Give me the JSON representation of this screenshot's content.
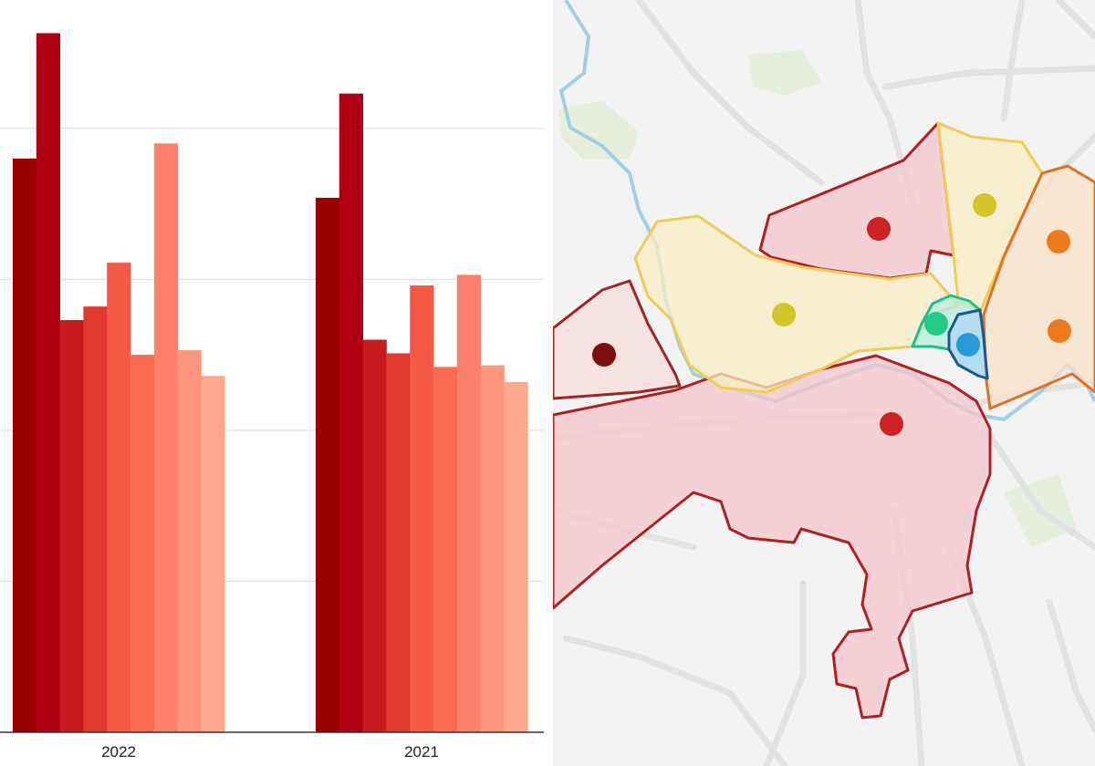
{
  "chart_data": {
    "type": "bar",
    "categories": [
      "2022",
      "2021"
    ],
    "series": [
      {
        "values": [
          380,
          354
        ]
      },
      {
        "values": [
          463,
          423
        ]
      },
      {
        "values": [
          273,
          260
        ]
      },
      {
        "values": [
          282,
          251
        ]
      },
      {
        "values": [
          311,
          296
        ]
      },
      {
        "values": [
          250,
          242
        ]
      },
      {
        "values": [
          390,
          303
        ]
      },
      {
        "values": [
          253,
          243
        ]
      },
      {
        "values": [
          236,
          232
        ]
      }
    ],
    "ylim": [
      0,
      485
    ],
    "grid": true,
    "colors": [
      "#990000",
      "#ae0012",
      "#c81b1d",
      "#e03a2e",
      "#f55a45",
      "#fd6a52",
      "#fd806a",
      "#fc967d",
      "#fca88c"
    ]
  },
  "map": {
    "districts": [
      {
        "fill": "#f4c6cb",
        "stroke": "#b02020",
        "marker": "#cc2222"
      },
      {
        "fill": "#f8edc4",
        "stroke": "#f0cc55",
        "marker": "#d4c52a"
      },
      {
        "fill": "#f7dede",
        "stroke": "#a02525",
        "marker": "#7a0f0f"
      },
      {
        "fill": "#f9e2c8",
        "stroke": "#e07025",
        "marker": "#ee7a1c"
      },
      {
        "fill": "#b8ecdc",
        "stroke": "#1fbf8a",
        "marker": "#22cc88"
      },
      {
        "fill": "#a9d8ee",
        "stroke": "#1a5a8a",
        "marker": "#2a9ad6"
      }
    ],
    "colors": {
      "land": "#f3f3f3",
      "road": "#e2e2e2",
      "river": "#9fd0e6",
      "park": "#e6efdc"
    }
  }
}
